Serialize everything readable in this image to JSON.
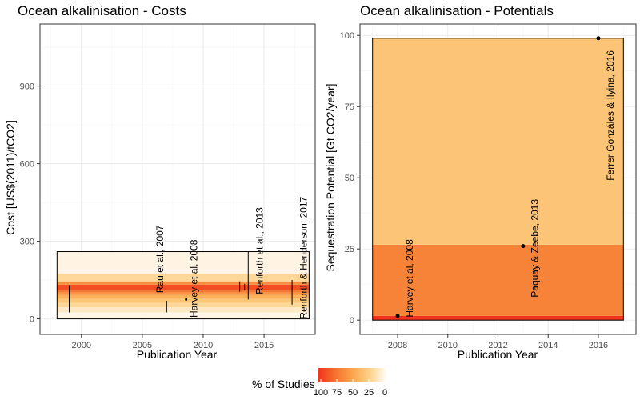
{
  "chart_data": [
    {
      "type": "bar",
      "title": "Ocean alkalinisation - Costs",
      "xlabel": "Publication Year",
      "ylabel": "Cost [US$(2011)/tCO2]",
      "xlim": [
        1996.6,
        2019.2
      ],
      "ylim": [
        -60,
        1140
      ],
      "xticks": [
        2000,
        2005,
        2010,
        2015
      ],
      "yticks": [
        0,
        300,
        600,
        900
      ],
      "grid": true,
      "range_box": {
        "x": [
          1998,
          2018.7
        ],
        "y": [
          0,
          260
        ]
      },
      "density_bands": [
        {
          "y": [
            0,
            25
          ],
          "pct": 5
        },
        {
          "y": [
            25,
            45
          ],
          "pct": 12
        },
        {
          "y": [
            45,
            62
          ],
          "pct": 22
        },
        {
          "y": [
            62,
            78
          ],
          "pct": 32
        },
        {
          "y": [
            78,
            92
          ],
          "pct": 44
        },
        {
          "y": [
            92,
            102
          ],
          "pct": 58
        },
        {
          "y": [
            102,
            112
          ],
          "pct": 72
        },
        {
          "y": [
            112,
            132
          ],
          "pct": 90
        },
        {
          "y": [
            132,
            145
          ],
          "pct": 62
        },
        {
          "y": [
            145,
            175
          ],
          "pct": 22
        },
        {
          "y": [
            175,
            260
          ],
          "pct": 6
        }
      ],
      "ranges": [
        {
          "x": 1999,
          "ymin": 25,
          "ymax": 130
        },
        {
          "x": 2007,
          "ymin": 25,
          "ymax": 70
        },
        {
          "x": 2013,
          "ymin": 105,
          "ymax": 145
        },
        {
          "x": 2013.4,
          "ymin": 110,
          "ymax": 135
        },
        {
          "x": 2013.7,
          "ymin": 75,
          "ymax": 260
        },
        {
          "x": 2017.3,
          "ymin": 55,
          "ymax": 150
        }
      ],
      "points": [
        {
          "x": 2008.6,
          "y": 75
        }
      ],
      "annotations": [
        {
          "text": "Rau et al., 2007",
          "x": 2006.5,
          "y": 100
        },
        {
          "text": "Harvey et al, 2008",
          "x": 2009.3,
          "y": 5
        },
        {
          "text": "Renforth et al., 2013",
          "x": 2014.7,
          "y": 95
        },
        {
          "text": "Renforth & Henderson, 2017",
          "x": 2018.3,
          "y": 0
        }
      ]
    },
    {
      "type": "bar",
      "title": "Ocean alkalinisation - Potentials",
      "xlabel": "Publication Year",
      "ylabel": "Sequestration Potential [Gt CO2/year]",
      "xlim": [
        2006.5,
        2017.5
      ],
      "ylim": [
        -5,
        104
      ],
      "xticks": [
        2008,
        2010,
        2012,
        2014,
        2016
      ],
      "yticks": [
        0,
        25,
        50,
        75,
        100
      ],
      "grid": true,
      "range_box": {
        "x": [
          2007,
          2017
        ],
        "y": [
          0,
          99
        ]
      },
      "density_bands": [
        {
          "y": [
            0,
            1.5
          ],
          "pct": 100
        },
        {
          "y": [
            1.5,
            26.5
          ],
          "pct": 67
        },
        {
          "y": [
            26.5,
            99
          ],
          "pct": 33
        }
      ],
      "points": [
        {
          "x": 2008,
          "y": 1.5
        },
        {
          "x": 2013,
          "y": 26
        },
        {
          "x": 2016,
          "y": 99
        }
      ],
      "annotations": [
        {
          "text": "Harvey et al, 2008",
          "x": 2008.5,
          "y": 1
        },
        {
          "text": "Paquay & Zeebe, 2013",
          "x": 2013.5,
          "y": 8
        },
        {
          "text": "Ferrer Gonzáles & Ilyina, 2016",
          "x": 2016.5,
          "y": 49
        }
      ]
    }
  ],
  "legend": {
    "title": "% of Studies",
    "labels": [
      "100",
      "75",
      "50",
      "25",
      "0"
    ],
    "colors": [
      "#f0341c",
      "#f4732e",
      "#fba64e",
      "#fdd28a",
      "#ffffff"
    ]
  }
}
